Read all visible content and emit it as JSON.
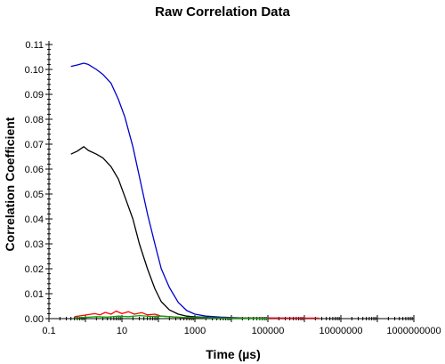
{
  "chart_data": {
    "type": "line",
    "title": "Raw Correlation Data",
    "xlabel": "Time (µs)",
    "ylabel": "Correlation Coefficient",
    "x_scale": "log",
    "xlim": [
      0.1,
      1000000000
    ],
    "ylim": [
      0,
      0.11
    ],
    "x_ticks": [
      0.1,
      10,
      1000,
      100000,
      10000000,
      1000000000
    ],
    "x_tick_labels": [
      "0.1",
      "10",
      "1000",
      "100000",
      "10000000",
      "1000000000"
    ],
    "y_ticks": [
      0,
      0.01,
      0.02,
      0.03,
      0.04,
      0.05,
      0.06,
      0.07,
      0.08,
      0.09,
      0.1,
      0.11
    ],
    "y_tick_labels": [
      "0.00",
      "0.01",
      "0.02",
      "0.03",
      "0.04",
      "0.05",
      "0.06",
      "0.07",
      "0.08",
      "0.09",
      "0.10",
      "0.11"
    ],
    "grid": false,
    "legend": "none",
    "series": [
      {
        "color": "#0000cc",
        "points": [
          [
            0.4,
            0.1012
          ],
          [
            0.6,
            0.1018
          ],
          [
            0.9,
            0.1025
          ],
          [
            1.2,
            0.102
          ],
          [
            2,
            0.1
          ],
          [
            3,
            0.098
          ],
          [
            5,
            0.0945
          ],
          [
            8,
            0.088
          ],
          [
            12,
            0.081
          ],
          [
            20,
            0.069
          ],
          [
            30,
            0.057
          ],
          [
            50,
            0.042
          ],
          [
            80,
            0.03
          ],
          [
            120,
            0.02
          ],
          [
            200,
            0.0125
          ],
          [
            350,
            0.0065
          ],
          [
            600,
            0.0032
          ],
          [
            1000,
            0.0018
          ],
          [
            2000,
            0.001
          ],
          [
            5000,
            0.0006
          ],
          [
            20000,
            0.0003
          ],
          [
            100000,
            0.0002
          ],
          [
            1000000,
            0.0001
          ],
          [
            2500000,
            0.0001
          ]
        ]
      },
      {
        "color": "#000000",
        "points": [
          [
            0.4,
            0.066
          ],
          [
            0.6,
            0.0672
          ],
          [
            0.9,
            0.069
          ],
          [
            1.2,
            0.0675
          ],
          [
            2,
            0.066
          ],
          [
            3,
            0.0645
          ],
          [
            5,
            0.061
          ],
          [
            8,
            0.056
          ],
          [
            12,
            0.049
          ],
          [
            20,
            0.04
          ],
          [
            30,
            0.03
          ],
          [
            50,
            0.02
          ],
          [
            80,
            0.012
          ],
          [
            120,
            0.0068
          ],
          [
            200,
            0.0035
          ],
          [
            350,
            0.0018
          ],
          [
            600,
            0.001
          ],
          [
            1000,
            0.0007
          ],
          [
            3000,
            0.0004
          ],
          [
            20000,
            0.0002
          ],
          [
            300000,
            0.0001
          ],
          [
            2500000,
            0.0001
          ]
        ]
      },
      {
        "color": "#ff0000",
        "points": [
          [
            0.5,
            0.0008
          ],
          [
            0.8,
            0.0012
          ],
          [
            1.2,
            0.0016
          ],
          [
            1.8,
            0.002
          ],
          [
            2.5,
            0.0015
          ],
          [
            3.5,
            0.0025
          ],
          [
            5,
            0.0018
          ],
          [
            7,
            0.003
          ],
          [
            10,
            0.002
          ],
          [
            15,
            0.0028
          ],
          [
            22,
            0.0018
          ],
          [
            35,
            0.0024
          ],
          [
            50,
            0.0015
          ],
          [
            80,
            0.0018
          ],
          [
            120,
            0.001
          ],
          [
            200,
            0.0008
          ],
          [
            400,
            0.0005
          ],
          [
            800,
            0.0004
          ],
          [
            3000,
            0.0003
          ],
          [
            30000,
            0.0002
          ],
          [
            300000,
            0.0002
          ],
          [
            2500000,
            0.0002
          ]
        ]
      },
      {
        "color": "#00aa00",
        "points": [
          [
            0.5,
            0.0003
          ],
          [
            1,
            0.0005
          ],
          [
            2,
            0.0008
          ],
          [
            4,
            0.0006
          ],
          [
            8,
            0.001
          ],
          [
            15,
            0.0008
          ],
          [
            30,
            0.0012
          ],
          [
            60,
            0.0009
          ],
          [
            120,
            0.001
          ],
          [
            250,
            0.0007
          ],
          [
            500,
            0.0005
          ],
          [
            1000,
            0.0004
          ],
          [
            3000,
            0.0003
          ],
          [
            10000,
            0.0002
          ],
          [
            100000,
            0.0001
          ]
        ]
      }
    ]
  }
}
